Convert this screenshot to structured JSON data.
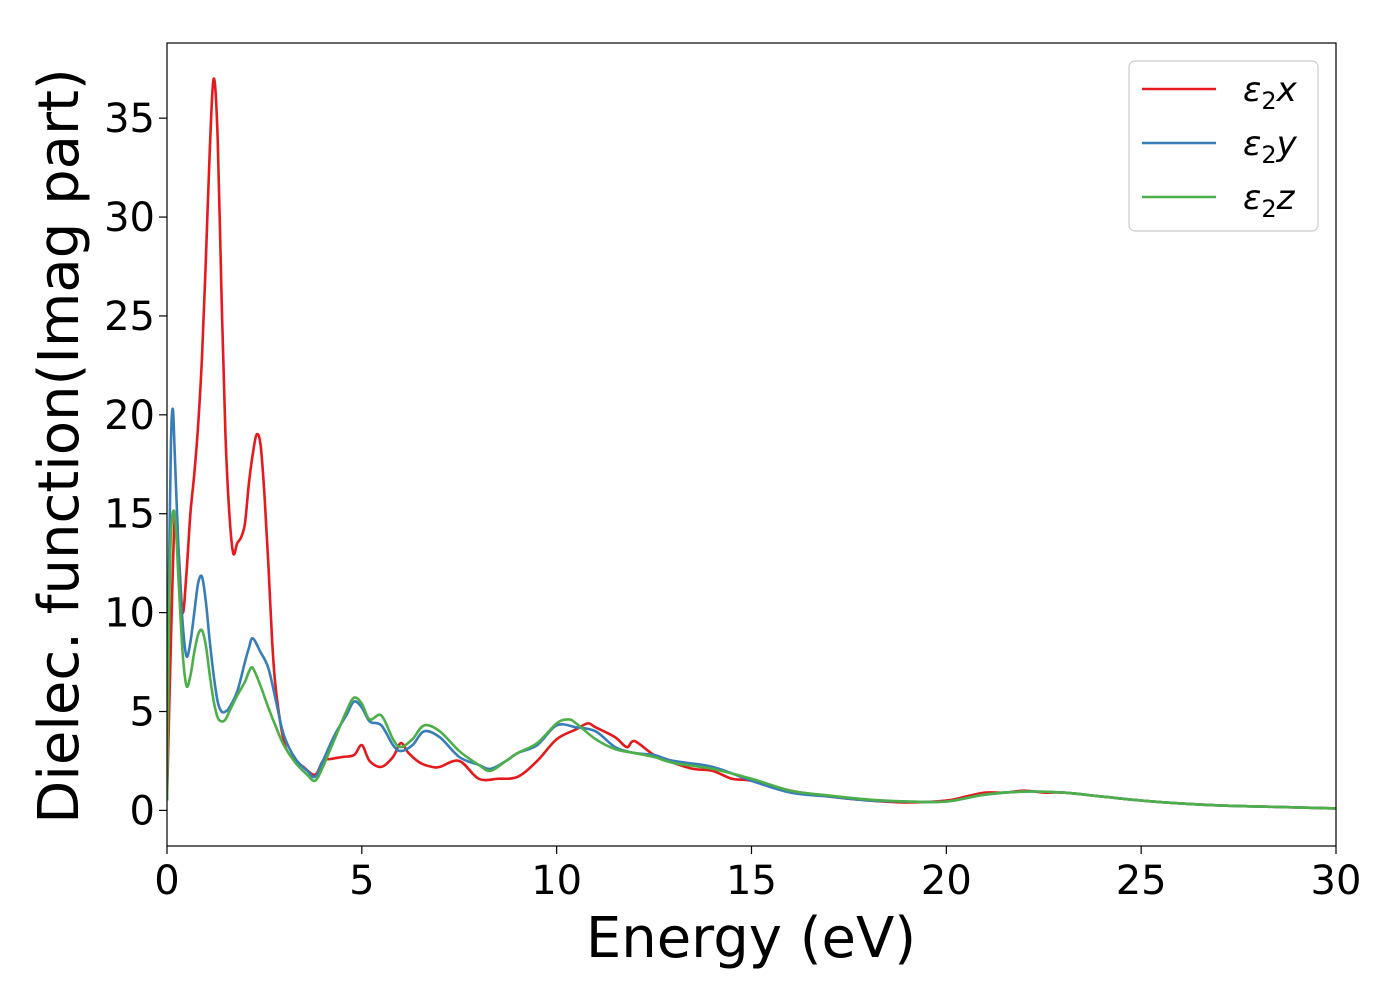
{
  "chart_data": {
    "type": "line",
    "title": "",
    "xlabel": "Energy (eV)",
    "ylabel": "Dielec. function(Imag part)",
    "xlim": [
      0,
      30
    ],
    "ylim": [
      -1.8,
      38.8
    ],
    "xticks": [
      0,
      5,
      10,
      15,
      20,
      25,
      30
    ],
    "yticks": [
      0,
      5,
      10,
      15,
      20,
      25,
      30,
      35
    ],
    "grid": false,
    "legend_position": "top-right",
    "series": [
      {
        "name": "ε2x",
        "legend_base": "ε",
        "legend_sub": "2",
        "legend_suffix": "x",
        "color": "#e41a1c",
        "x": [
          0,
          0.1,
          0.2,
          0.3,
          0.4,
          0.5,
          0.6,
          0.7,
          0.8,
          0.9,
          1.0,
          1.1,
          1.2,
          1.3,
          1.4,
          1.5,
          1.6,
          1.7,
          1.8,
          1.9,
          2.0,
          2.1,
          2.2,
          2.3,
          2.4,
          2.5,
          2.6,
          2.7,
          2.8,
          3.0,
          3.2,
          3.5,
          3.8,
          4.0,
          4.2,
          4.5,
          4.8,
          5.0,
          5.2,
          5.5,
          5.8,
          6.0,
          6.2,
          6.5,
          6.8,
          7.0,
          7.5,
          8.0,
          8.5,
          9.0,
          9.5,
          10.0,
          10.5,
          10.8,
          11.0,
          11.5,
          11.8,
          12.0,
          12.5,
          13.0,
          13.5,
          14.0,
          14.5,
          15.0,
          16.0,
          17.0,
          18.0,
          19.0,
          20.0,
          20.5,
          21.0,
          21.5,
          22.0,
          22.5,
          23.0,
          24.0,
          25.0,
          26.0,
          27.0,
          28.0,
          29.0,
          30.0
        ],
        "y": [
          0.5,
          8.5,
          14.8,
          13.0,
          10.0,
          12.0,
          15.0,
          17.0,
          19.5,
          23.0,
          28.0,
          33.5,
          37.0,
          34.0,
          26.0,
          19.0,
          15.0,
          13.0,
          13.5,
          13.8,
          14.5,
          16.5,
          18.0,
          19.0,
          18.5,
          16.0,
          12.5,
          8.5,
          6.0,
          3.5,
          2.7,
          2.2,
          1.8,
          2.5,
          2.6,
          2.7,
          2.8,
          3.3,
          2.5,
          2.2,
          2.7,
          3.4,
          2.9,
          2.4,
          2.2,
          2.2,
          2.5,
          1.6,
          1.6,
          1.7,
          2.5,
          3.6,
          4.1,
          4.4,
          4.2,
          3.7,
          3.2,
          3.5,
          2.8,
          2.4,
          2.1,
          2.0,
          1.6,
          1.5,
          1.0,
          0.7,
          0.5,
          0.4,
          0.5,
          0.7,
          0.9,
          0.9,
          1.0,
          0.9,
          0.9,
          0.7,
          0.5,
          0.35,
          0.25,
          0.2,
          0.15,
          0.1
        ]
      },
      {
        "name": "ε2y",
        "legend_base": "ε",
        "legend_sub": "2",
        "legend_suffix": "y",
        "color": "#377eb8",
        "x": [
          0,
          0.05,
          0.1,
          0.15,
          0.2,
          0.3,
          0.4,
          0.5,
          0.6,
          0.7,
          0.8,
          0.9,
          1.0,
          1.1,
          1.2,
          1.3,
          1.4,
          1.5,
          1.6,
          1.8,
          2.0,
          2.1,
          2.2,
          2.4,
          2.6,
          2.8,
          3.0,
          3.3,
          3.6,
          3.8,
          4.0,
          4.3,
          4.6,
          4.8,
          5.0,
          5.2,
          5.5,
          5.8,
          6.0,
          6.3,
          6.6,
          7.0,
          7.5,
          8.0,
          8.3,
          8.7,
          9.0,
          9.5,
          10.0,
          10.5,
          11.0,
          11.5,
          12.0,
          12.5,
          13.0,
          14.0,
          15.0,
          16.0,
          17.0,
          18.0,
          19.0,
          20.0,
          21.0,
          22.0,
          23.0,
          24.0,
          25.0,
          26.0,
          27.0,
          28.0,
          29.0,
          30.0
        ],
        "y": [
          0.5,
          12.0,
          18.5,
          20.3,
          18.0,
          13.0,
          9.5,
          7.8,
          8.5,
          10.0,
          11.5,
          11.8,
          10.5,
          8.5,
          6.8,
          5.5,
          5.0,
          5.0,
          5.2,
          6.0,
          7.5,
          8.2,
          8.7,
          8.0,
          7.2,
          5.5,
          3.8,
          2.6,
          2.0,
          1.7,
          2.5,
          3.8,
          4.8,
          5.5,
          5.2,
          4.5,
          4.3,
          3.3,
          3.0,
          3.3,
          4.0,
          3.7,
          2.7,
          2.3,
          2.1,
          2.5,
          2.9,
          3.3,
          4.3,
          4.2,
          4.0,
          3.2,
          2.9,
          2.8,
          2.5,
          2.2,
          1.5,
          0.9,
          0.7,
          0.5,
          0.45,
          0.45,
          0.8,
          0.95,
          0.9,
          0.7,
          0.5,
          0.35,
          0.25,
          0.2,
          0.15,
          0.1
        ]
      },
      {
        "name": "ε2z",
        "legend_base": "ε",
        "legend_sub": "2",
        "legend_suffix": "z",
        "color": "#4daf4a",
        "x": [
          0,
          0.05,
          0.1,
          0.2,
          0.3,
          0.4,
          0.5,
          0.6,
          0.7,
          0.8,
          0.9,
          1.0,
          1.1,
          1.2,
          1.3,
          1.4,
          1.5,
          1.6,
          1.8,
          2.0,
          2.1,
          2.2,
          2.4,
          2.6,
          2.8,
          3.0,
          3.3,
          3.6,
          3.8,
          4.0,
          4.3,
          4.6,
          4.8,
          5.0,
          5.2,
          5.5,
          5.8,
          6.0,
          6.3,
          6.6,
          7.0,
          7.5,
          8.0,
          8.3,
          8.7,
          9.0,
          9.5,
          10.0,
          10.3,
          10.5,
          11.0,
          11.5,
          12.0,
          12.5,
          13.0,
          14.0,
          15.0,
          16.0,
          17.0,
          18.0,
          19.0,
          20.0,
          21.0,
          22.0,
          23.0,
          24.0,
          25.0,
          26.0,
          27.0,
          28.0,
          29.0,
          30.0
        ],
        "y": [
          0.5,
          9.0,
          14.0,
          15.0,
          11.5,
          8.0,
          6.3,
          6.8,
          8.0,
          8.9,
          9.1,
          8.3,
          6.8,
          5.5,
          4.7,
          4.5,
          4.6,
          5.0,
          5.8,
          6.5,
          7.0,
          7.2,
          6.3,
          5.2,
          4.2,
          3.3,
          2.4,
          1.8,
          1.5,
          2.2,
          3.6,
          5.0,
          5.7,
          5.4,
          4.6,
          4.8,
          3.6,
          3.2,
          3.6,
          4.3,
          4.0,
          3.0,
          2.3,
          2.0,
          2.5,
          2.9,
          3.4,
          4.4,
          4.6,
          4.4,
          3.6,
          3.1,
          2.9,
          2.7,
          2.4,
          2.1,
          1.6,
          1.0,
          0.75,
          0.55,
          0.45,
          0.45,
          0.8,
          0.95,
          0.9,
          0.7,
          0.5,
          0.35,
          0.25,
          0.2,
          0.15,
          0.1
        ]
      }
    ]
  }
}
